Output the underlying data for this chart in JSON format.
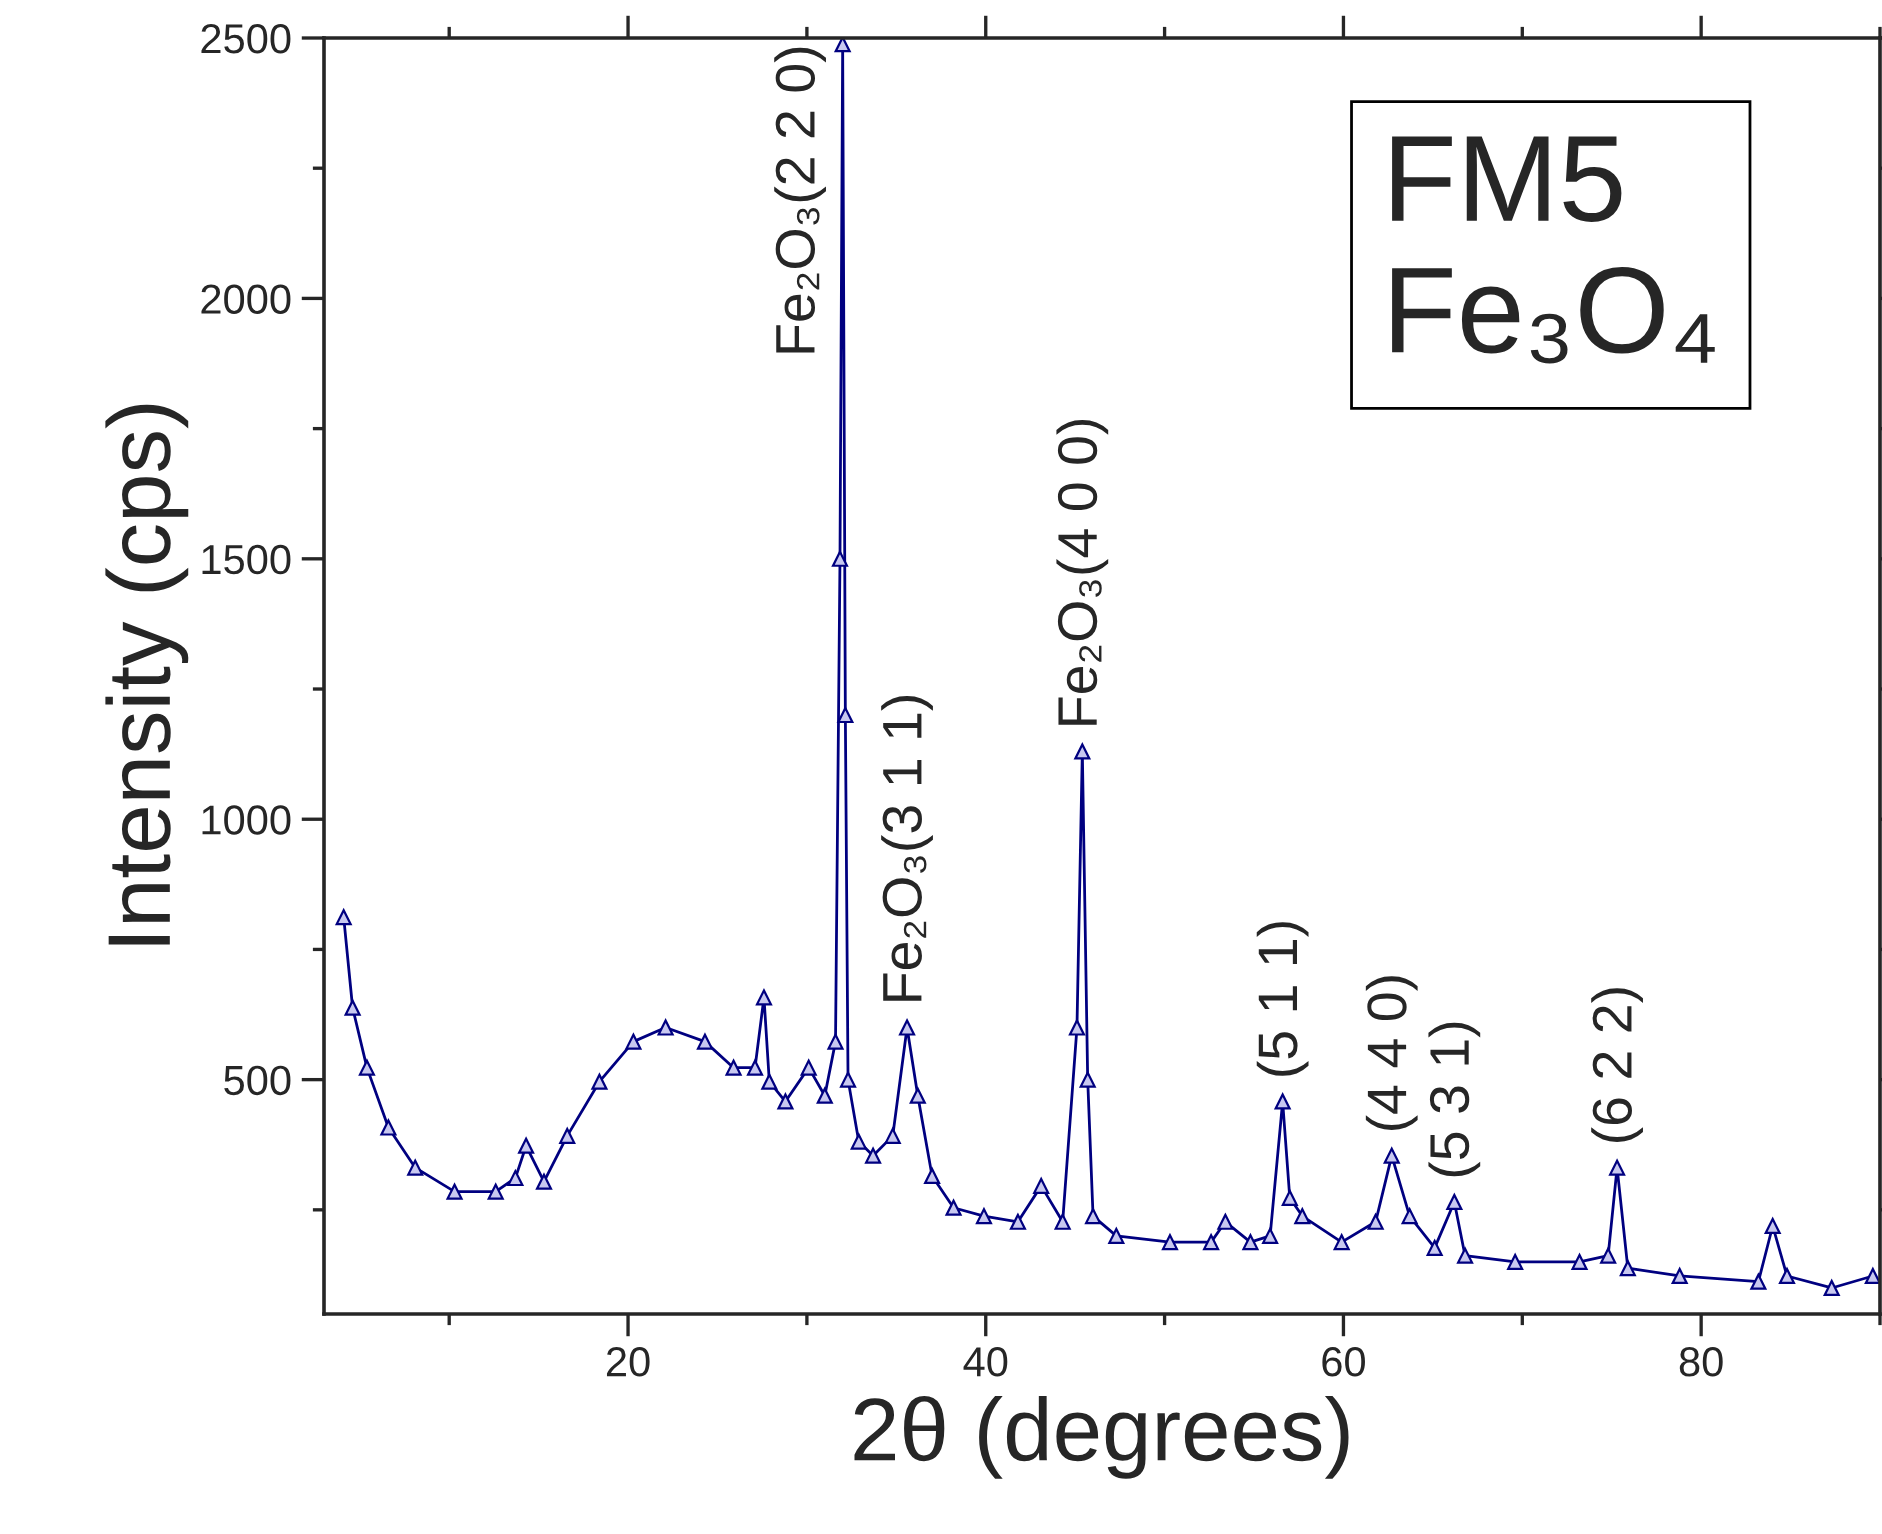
{
  "chart_data": {
    "type": "line",
    "xlabel": "2θ (degrees)",
    "ylabel": "Intensity (cps)",
    "xlim": [
      3,
      90
    ],
    "ylim": [
      50,
      2500
    ],
    "xticks": [
      20,
      40,
      60,
      80
    ],
    "yticks": [
      500,
      1000,
      1500,
      2000,
      2500
    ],
    "grid": false,
    "legend": false,
    "marker": "triangle",
    "line_style": "solid",
    "series": [
      {
        "color": "#000080",
        "x": [
          4.1,
          4.6,
          5.4,
          6.6,
          8.1,
          10.3,
          12.6,
          13.7,
          14.3,
          15.3,
          16.6,
          18.4,
          20.3,
          22.1,
          24.3,
          25.9,
          27.1,
          27.6,
          27.9,
          28.8,
          30.1,
          31.0,
          31.6,
          31.85,
          32.0,
          32.15,
          32.3,
          32.9,
          33.7,
          34.8,
          35.6,
          36.2,
          37.0,
          38.2,
          39.9,
          41.8,
          43.1,
          44.3,
          45.1,
          45.4,
          45.7,
          46.0,
          47.3,
          50.3,
          52.6,
          53.4,
          54.8,
          55.9,
          56.6,
          57.0,
          57.7,
          59.9,
          61.8,
          62.7,
          63.7,
          65.1,
          66.2,
          66.8,
          69.6,
          73.2,
          74.8,
          75.3,
          75.9,
          78.8,
          83.2,
          84.0,
          84.8,
          87.3,
          89.6
        ],
        "values": [
          812,
          638,
          523,
          408,
          331,
          285,
          285,
          311,
          373,
          304,
          392,
          496,
          573,
          600,
          573,
          523,
          523,
          658,
          496,
          458,
          523,
          469,
          573,
          1500,
          2488,
          1200,
          500,
          381,
          354,
          392,
          600,
          469,
          315,
          254,
          238,
          227,
          296,
          227,
          600,
          1130,
          500,
          238,
          200,
          188,
          188,
          227,
          188,
          200,
          458,
          273,
          238,
          188,
          227,
          354,
          238,
          177,
          265,
          162,
          150,
          150,
          162,
          331,
          138,
          123,
          112,
          219,
          123,
          100,
          123
        ]
      }
    ],
    "annotations": [
      {
        "text": "Fe₂O₃(2 2 0)",
        "x": 32.0,
        "y": 2488
      },
      {
        "text": "Fe₂O₃(3 1 1)",
        "x": 35.6,
        "y": 600
      },
      {
        "text": "Fe₂O₃(4 0 0)",
        "x": 45.4,
        "y": 1130
      },
      {
        "text": "(5 1 1)",
        "x": 56.6,
        "y": 458
      },
      {
        "text": "(4 4 0)",
        "x": 62.7,
        "y": 354
      },
      {
        "text": "(5 3 1)",
        "x": 66.2,
        "y": 265
      },
      {
        "text": "(6 2 2)",
        "x": 75.3,
        "y": 331
      },
      "FM5",
      "Fe₃O₄"
    ]
  }
}
